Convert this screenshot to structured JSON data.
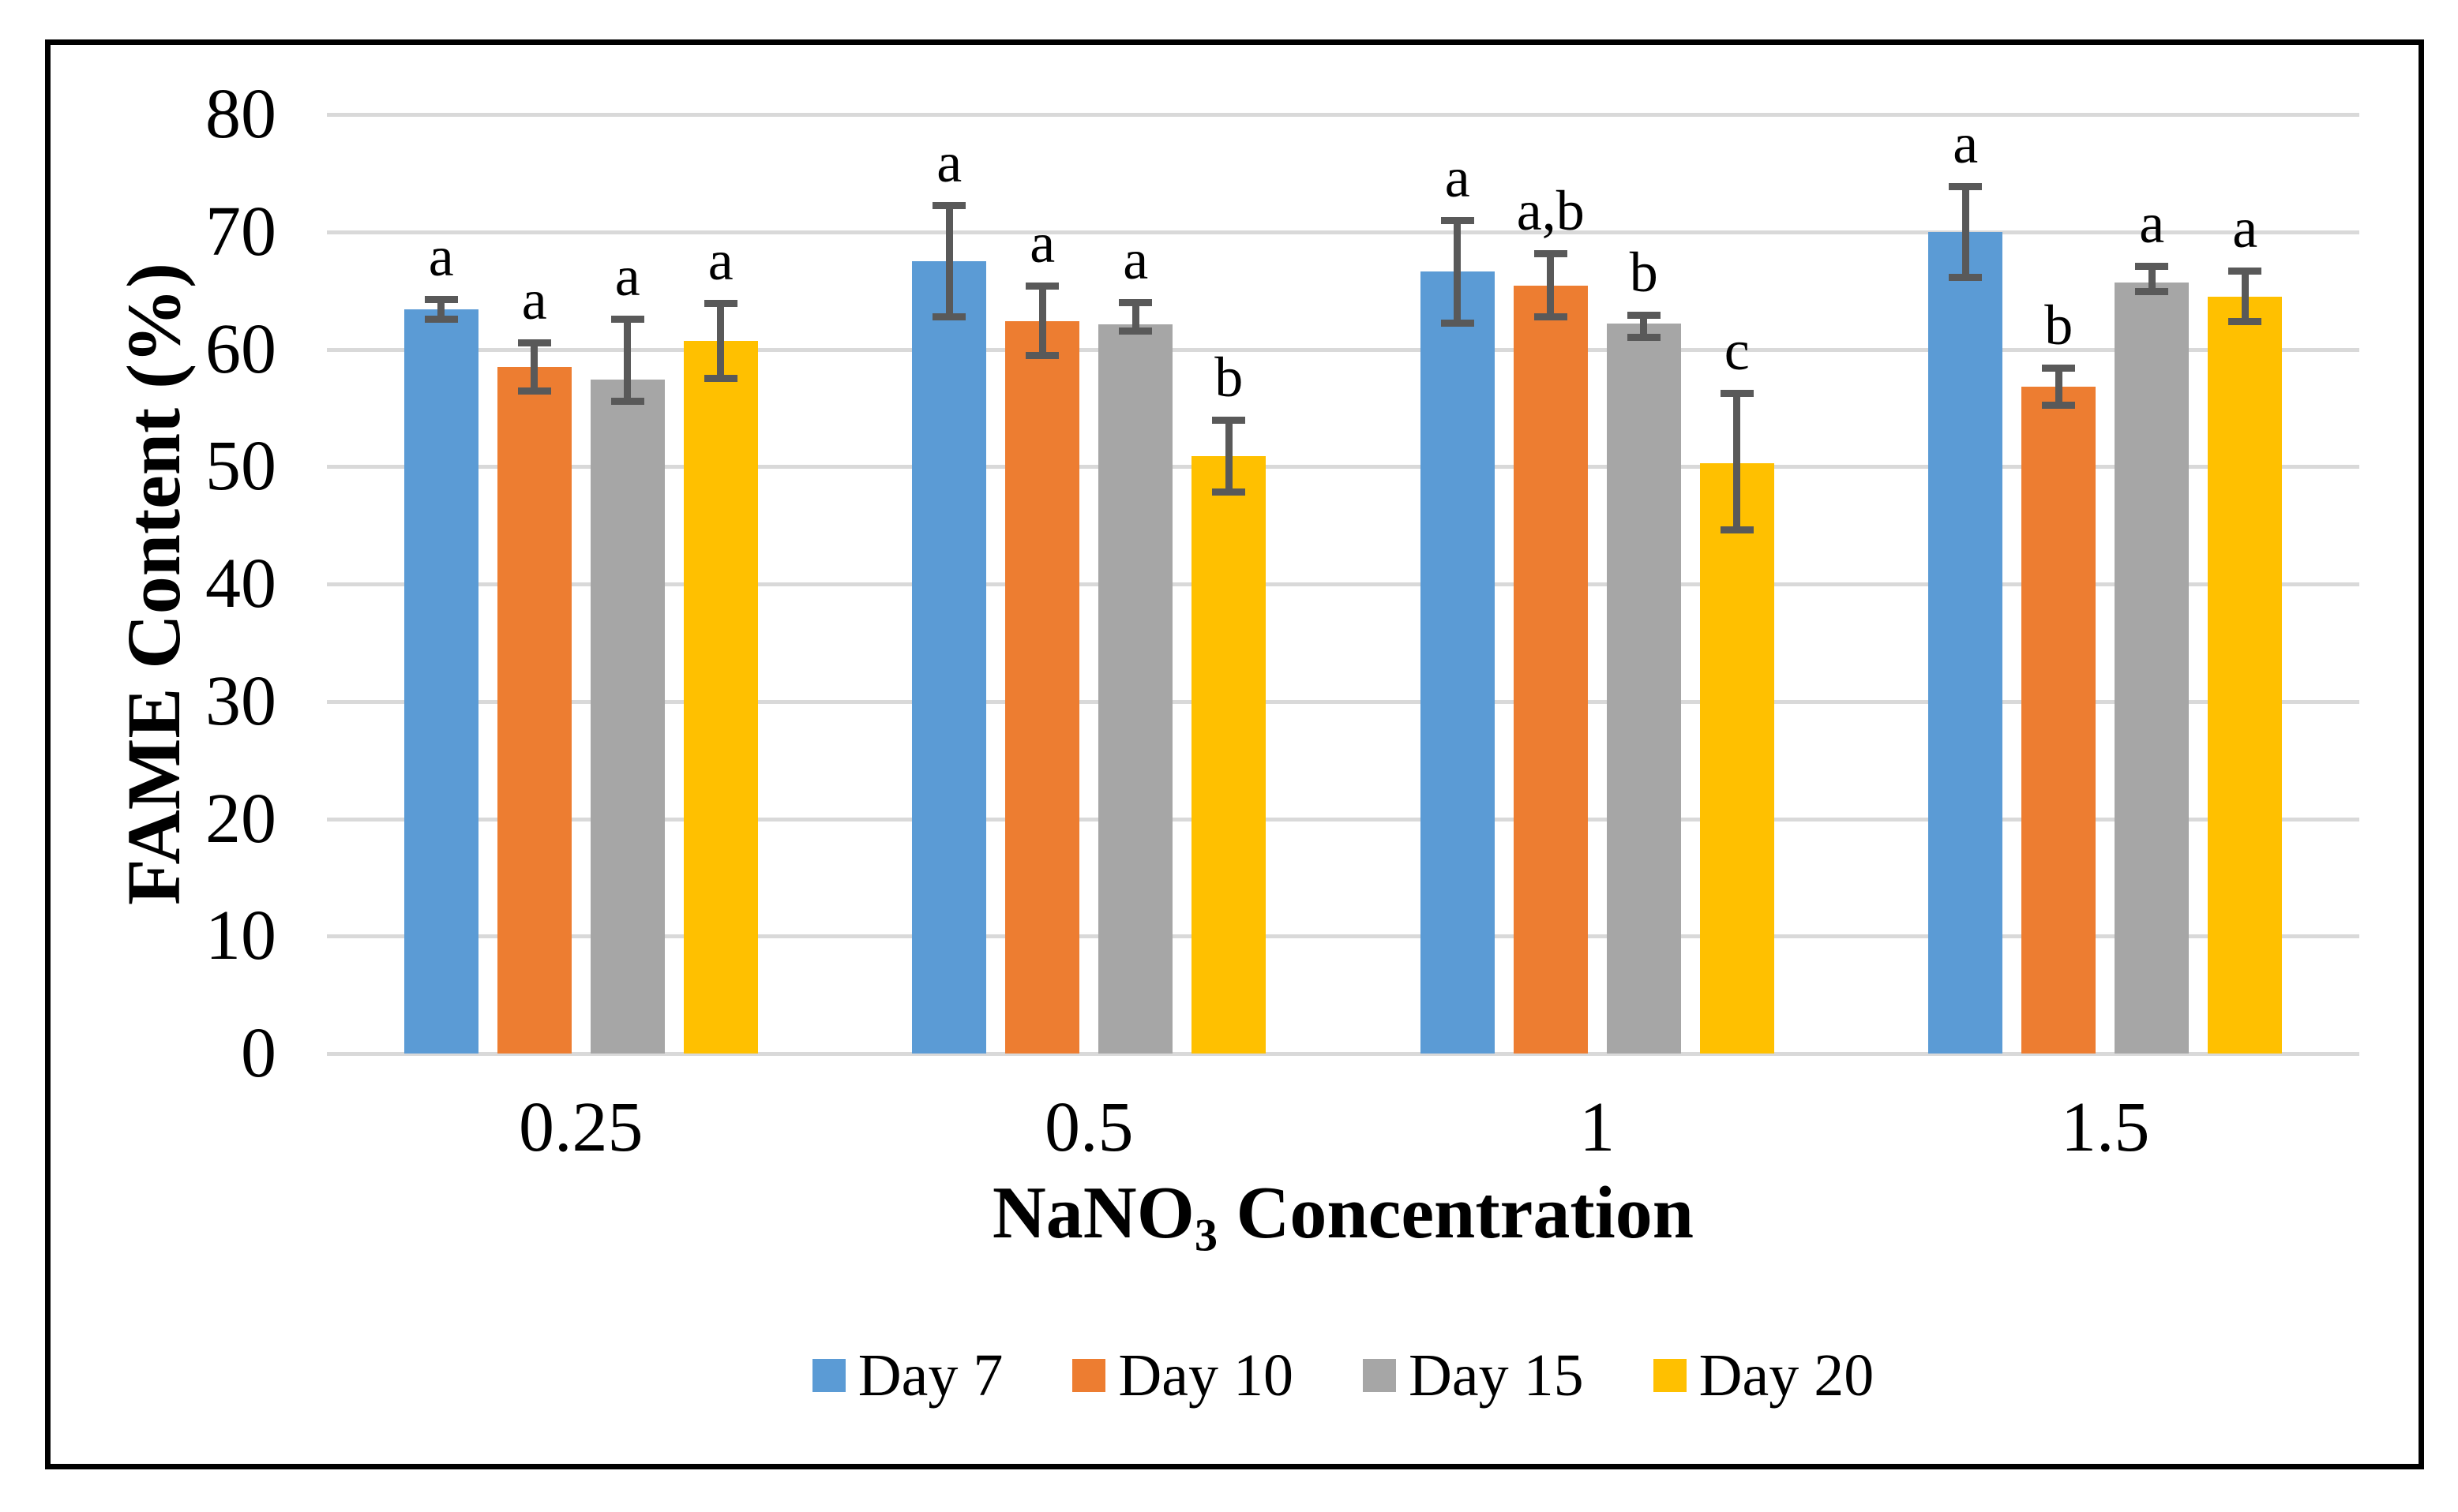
{
  "chart_data": {
    "type": "bar",
    "title": "",
    "xlabel_prefix": "NaNO",
    "xlabel_sub": "3",
    "xlabel_suffix": " Concentration",
    "ylabel": "FAME Content (%)",
    "ylim": [
      0,
      80
    ],
    "yticks": [
      "0",
      "10",
      "20",
      "30",
      "40",
      "50",
      "60",
      "70",
      "80"
    ],
    "categories": [
      "0.25",
      "0.5",
      "1",
      "1.5"
    ],
    "series": [
      {
        "name": "Day 7",
        "color": "#5B9BD5",
        "values": [
          63.4,
          67.5,
          66.6,
          70.0
        ],
        "err_up": [
          0.9,
          4.8,
          4.4,
          3.9
        ],
        "err_down": [
          0.9,
          4.8,
          4.4,
          3.9
        ],
        "letters": [
          "a",
          "a",
          "a",
          "a"
        ]
      },
      {
        "name": "Day 10",
        "color": "#ED7D31",
        "values": [
          58.5,
          62.4,
          65.4,
          56.8
        ],
        "err_up": [
          2.1,
          3.0,
          2.8,
          1.6
        ],
        "err_down": [
          2.1,
          3.0,
          2.7,
          1.6
        ],
        "letters": [
          "a",
          "a",
          "a,b",
          "b"
        ]
      },
      {
        "name": "Day 15",
        "color": "#A6A6A6",
        "values": [
          57.4,
          62.1,
          62.2,
          65.7
        ],
        "err_up": [
          5.2,
          1.9,
          0.7,
          1.4
        ],
        "err_down": [
          1.9,
          0.6,
          1.2,
          0.8
        ],
        "letters": [
          "a",
          "a",
          "b",
          "a"
        ]
      },
      {
        "name": "Day 20",
        "color": "#FFC000",
        "values": [
          60.7,
          50.9,
          50.3,
          64.5
        ],
        "err_up": [
          3.2,
          3.1,
          6.0,
          2.2
        ],
        "err_down": [
          3.2,
          3.1,
          5.7,
          2.2
        ],
        "letters": [
          "a",
          "b",
          "c",
          "a"
        ]
      }
    ],
    "legend_position": "bottom",
    "grid": true,
    "colors": {
      "grid": "#D9D9D9",
      "error": "#595959",
      "text": "#000000",
      "border": "#000000",
      "background": "#FFFFFF"
    }
  }
}
